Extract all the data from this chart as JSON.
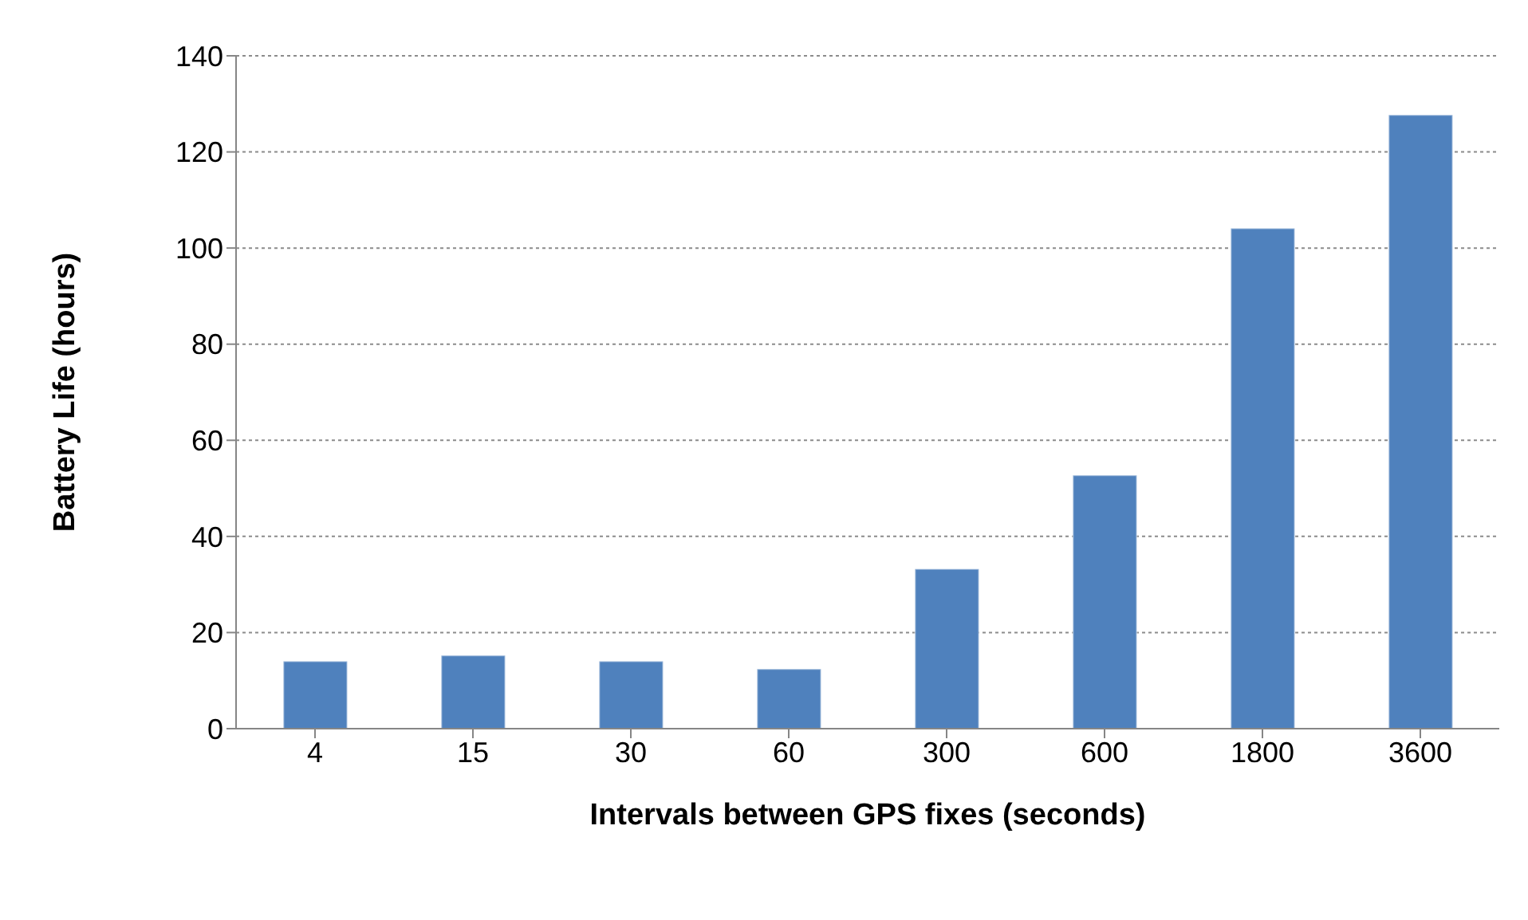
{
  "chart_data": {
    "type": "bar",
    "xlabel": "Intervals between GPS fixes (seconds)",
    "ylabel": "Battery Life (hours)",
    "categories": [
      "4",
      "15",
      "30",
      "60",
      "300",
      "600",
      "1800",
      "3600"
    ],
    "values": [
      14,
      15.2,
      14,
      12.4,
      33.2,
      52.7,
      104.1,
      127.7
    ],
    "color": "#4f81bd",
    "ylim": [
      0,
      140
    ],
    "yticks": [
      0,
      20,
      40,
      60,
      80,
      100,
      120,
      140
    ],
    "grid": "y"
  }
}
